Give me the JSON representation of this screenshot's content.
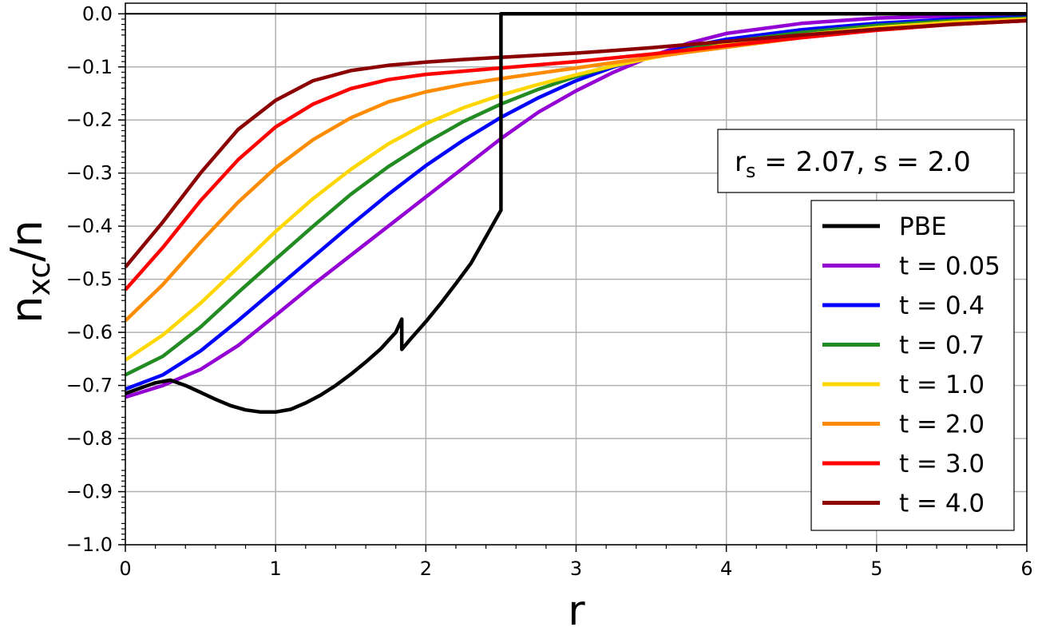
{
  "chart_data": {
    "type": "line",
    "title": "",
    "xlabel": "r",
    "ylabel_main": "n",
    "ylabel_sub": "xc",
    "ylabel_tail": "/n",
    "xlim": [
      0,
      6
    ],
    "ylim": [
      -1.0,
      0.02
    ],
    "grid": true,
    "x_ticks": [
      0,
      1,
      2,
      3,
      4,
      5,
      6
    ],
    "x_tick_labels": [
      "0",
      "1",
      "2",
      "3",
      "4",
      "5",
      "6"
    ],
    "y_ticks": [
      0.0,
      -0.1,
      -0.2,
      -0.3,
      -0.4,
      -0.5,
      -0.6,
      -0.7,
      -0.8,
      -0.9,
      -1.0
    ],
    "y_tick_labels": [
      "0.0",
      "−0.1",
      "−0.2",
      "−0.3",
      "−0.4",
      "−0.5",
      "−0.6",
      "−0.7",
      "−0.8",
      "−0.9",
      "−1.0"
    ],
    "zero_line": true,
    "annotation": {
      "r_main": "r",
      "r_sub": "s",
      "rest": " = 2.07, s = 2.0"
    },
    "legend_position": "right",
    "series": [
      {
        "name": "PBE",
        "color": "#000000",
        "x": [
          0,
          0.1,
          0.2,
          0.3,
          0.4,
          0.5,
          0.6,
          0.7,
          0.8,
          0.9,
          1.0,
          1.1,
          1.2,
          1.3,
          1.4,
          1.5,
          1.6,
          1.7,
          1.8,
          1.84,
          1.84,
          1.9,
          2.0,
          2.1,
          2.2,
          2.3,
          2.4,
          2.5,
          2.5,
          6.0
        ],
        "y": [
          -0.715,
          -0.705,
          -0.695,
          -0.69,
          -0.7,
          -0.713,
          -0.726,
          -0.738,
          -0.746,
          -0.75,
          -0.75,
          -0.745,
          -0.733,
          -0.718,
          -0.7,
          -0.679,
          -0.656,
          -0.631,
          -0.6,
          -0.575,
          -0.632,
          -0.612,
          -0.58,
          -0.545,
          -0.508,
          -0.47,
          -0.42,
          -0.37,
          0.0,
          0.0
        ]
      },
      {
        "name": "t = 0.05",
        "color": "#9400D3",
        "x": [
          0,
          0.25,
          0.5,
          0.75,
          1.0,
          1.25,
          1.5,
          1.75,
          2.0,
          2.25,
          2.5,
          2.75,
          3.0,
          3.25,
          3.5,
          3.75,
          4.0,
          4.5,
          5.0,
          5.5,
          6.0
        ],
        "y": [
          -0.722,
          -0.7,
          -0.67,
          -0.625,
          -0.568,
          -0.51,
          -0.455,
          -0.4,
          -0.345,
          -0.29,
          -0.235,
          -0.185,
          -0.145,
          -0.11,
          -0.08,
          -0.055,
          -0.037,
          -0.018,
          -0.008,
          -0.004,
          -0.002
        ]
      },
      {
        "name": "t = 0.4",
        "color": "#0000FF",
        "x": [
          0,
          0.25,
          0.5,
          0.75,
          1.0,
          1.25,
          1.5,
          1.75,
          2.0,
          2.25,
          2.5,
          2.75,
          3.0,
          3.25,
          3.5,
          3.75,
          4.0,
          4.5,
          5.0,
          5.5,
          6.0
        ],
        "y": [
          -0.707,
          -0.68,
          -0.635,
          -0.578,
          -0.518,
          -0.458,
          -0.398,
          -0.34,
          -0.286,
          -0.238,
          -0.195,
          -0.158,
          -0.126,
          -0.1,
          -0.079,
          -0.062,
          -0.048,
          -0.03,
          -0.018,
          -0.01,
          -0.006
        ]
      },
      {
        "name": "t = 0.7",
        "color": "#228B22",
        "x": [
          0,
          0.25,
          0.5,
          0.75,
          1.0,
          1.25,
          1.5,
          1.75,
          2.0,
          2.25,
          2.5,
          2.75,
          3.0,
          3.25,
          3.5,
          3.75,
          4.0,
          4.5,
          5.0,
          5.5,
          6.0
        ],
        "y": [
          -0.68,
          -0.645,
          -0.59,
          -0.525,
          -0.462,
          -0.4,
          -0.34,
          -0.288,
          -0.243,
          -0.203,
          -0.17,
          -0.142,
          -0.118,
          -0.098,
          -0.081,
          -0.066,
          -0.053,
          -0.035,
          -0.022,
          -0.013,
          -0.008
        ]
      },
      {
        "name": "t = 1.0",
        "color": "#FFD700",
        "x": [
          0,
          0.25,
          0.5,
          0.75,
          1.0,
          1.25,
          1.5,
          1.75,
          2.0,
          2.25,
          2.5,
          2.75,
          3.0,
          3.25,
          3.5,
          3.75,
          4.0,
          4.5,
          5.0,
          5.5,
          6.0
        ],
        "y": [
          -0.652,
          -0.605,
          -0.545,
          -0.478,
          -0.41,
          -0.348,
          -0.293,
          -0.245,
          -0.207,
          -0.177,
          -0.153,
          -0.133,
          -0.115,
          -0.098,
          -0.083,
          -0.07,
          -0.058,
          -0.04,
          -0.026,
          -0.016,
          -0.01
        ]
      },
      {
        "name": "t = 2.0",
        "color": "#FF8C00",
        "x": [
          0,
          0.25,
          0.5,
          0.75,
          1.0,
          1.25,
          1.5,
          1.75,
          2.0,
          2.25,
          2.5,
          2.75,
          3.0,
          3.25,
          3.5,
          3.75,
          4.0,
          4.5,
          5.0,
          5.5,
          6.0
        ],
        "y": [
          -0.578,
          -0.51,
          -0.43,
          -0.355,
          -0.29,
          -0.237,
          -0.196,
          -0.166,
          -0.147,
          -0.133,
          -0.122,
          -0.112,
          -0.102,
          -0.092,
          -0.082,
          -0.072,
          -0.063,
          -0.045,
          -0.03,
          -0.019,
          -0.012
        ]
      },
      {
        "name": "t = 3.0",
        "color": "#FF0000",
        "x": [
          0,
          0.25,
          0.5,
          0.75,
          1.0,
          1.25,
          1.5,
          1.75,
          2.0,
          2.25,
          2.5,
          2.75,
          3.0,
          3.25,
          3.5,
          3.75,
          4.0,
          4.5,
          5.0,
          5.5,
          6.0
        ],
        "y": [
          -0.52,
          -0.44,
          -0.352,
          -0.275,
          -0.213,
          -0.17,
          -0.141,
          -0.124,
          -0.114,
          -0.108,
          -0.102,
          -0.096,
          -0.09,
          -0.083,
          -0.076,
          -0.068,
          -0.06,
          -0.045,
          -0.031,
          -0.02,
          -0.013
        ]
      },
      {
        "name": "t = 4.0",
        "color": "#8B0000",
        "x": [
          0,
          0.25,
          0.5,
          0.75,
          1.0,
          1.25,
          1.5,
          1.75,
          2.0,
          2.25,
          2.5,
          2.75,
          3.0,
          3.25,
          3.5,
          3.75,
          4.0,
          4.5,
          5.0,
          5.5,
          6.0
        ],
        "y": [
          -0.477,
          -0.392,
          -0.3,
          -0.218,
          -0.163,
          -0.126,
          -0.107,
          -0.097,
          -0.091,
          -0.086,
          -0.082,
          -0.078,
          -0.074,
          -0.069,
          -0.064,
          -0.058,
          -0.052,
          -0.04,
          -0.029,
          -0.02,
          -0.013
        ]
      }
    ]
  }
}
